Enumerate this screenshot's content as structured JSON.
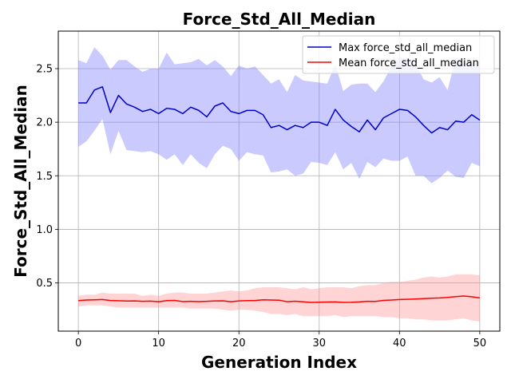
{
  "chart_data": {
    "type": "line",
    "title": "Force_Std_All_Median",
    "xlabel": "Generation Index",
    "ylabel": "Force_Std_All_Median",
    "xlim": [
      -2.5,
      52.5
    ],
    "ylim": [
      0.05,
      2.85
    ],
    "xticks": [
      0,
      10,
      20,
      30,
      40,
      50
    ],
    "yticks": [
      0.5,
      1.0,
      1.5,
      2.0,
      2.5
    ],
    "ytick_labels": [
      "0.5",
      "1.0",
      "1.5",
      "2.0",
      "2.5"
    ],
    "grid": true,
    "legend_position": "top-right",
    "x": [
      0,
      1,
      2,
      3,
      4,
      5,
      6,
      7,
      8,
      9,
      10,
      11,
      12,
      13,
      14,
      15,
      16,
      17,
      18,
      19,
      20,
      21,
      22,
      23,
      24,
      25,
      26,
      27,
      28,
      29,
      30,
      31,
      32,
      33,
      34,
      35,
      36,
      37,
      38,
      39,
      40,
      41,
      42,
      43,
      44,
      45,
      46,
      47,
      48,
      49,
      50
    ],
    "series": [
      {
        "name": "Max force_std_all_median",
        "color": "#0000cc",
        "band_color": "#8080ff",
        "values": [
          2.18,
          2.18,
          2.3,
          2.33,
          2.09,
          2.25,
          2.17,
          2.14,
          2.1,
          2.12,
          2.08,
          2.13,
          2.12,
          2.08,
          2.14,
          2.11,
          2.05,
          2.15,
          2.18,
          2.1,
          2.08,
          2.11,
          2.11,
          2.07,
          1.95,
          1.97,
          1.93,
          1.97,
          1.95,
          2.0,
          2.0,
          1.97,
          2.12,
          2.02,
          1.96,
          1.91,
          2.02,
          1.93,
          2.04,
          2.08,
          2.12,
          2.11,
          2.05,
          1.97,
          1.9,
          1.95,
          1.93,
          2.01,
          2.0,
          2.07,
          2.02
        ],
        "upper": [
          2.58,
          2.55,
          2.7,
          2.62,
          2.49,
          2.58,
          2.58,
          2.52,
          2.47,
          2.5,
          2.5,
          2.65,
          2.54,
          2.55,
          2.56,
          2.59,
          2.53,
          2.58,
          2.52,
          2.43,
          2.53,
          2.5,
          2.52,
          2.44,
          2.36,
          2.4,
          2.28,
          2.44,
          2.39,
          2.38,
          2.37,
          2.36,
          2.54,
          2.29,
          2.35,
          2.36,
          2.36,
          2.28,
          2.38,
          2.52,
          2.6,
          2.6,
          2.55,
          2.4,
          2.37,
          2.42,
          2.3,
          2.6,
          2.56,
          2.55,
          2.57
        ],
        "lower": [
          1.77,
          1.82,
          1.92,
          2.03,
          1.7,
          1.92,
          1.74,
          1.73,
          1.72,
          1.73,
          1.7,
          1.65,
          1.7,
          1.6,
          1.7,
          1.62,
          1.57,
          1.7,
          1.78,
          1.75,
          1.64,
          1.72,
          1.7,
          1.69,
          1.53,
          1.54,
          1.56,
          1.5,
          1.52,
          1.63,
          1.62,
          1.6,
          1.72,
          1.56,
          1.62,
          1.47,
          1.63,
          1.58,
          1.66,
          1.64,
          1.64,
          1.68,
          1.5,
          1.5,
          1.43,
          1.48,
          1.55,
          1.49,
          1.48,
          1.62,
          1.59
        ]
      },
      {
        "name": "Mean force_std_all_median",
        "color": "#ff0000",
        "band_color": "#ff9999",
        "values": [
          0.335,
          0.34,
          0.342,
          0.345,
          0.336,
          0.334,
          0.331,
          0.332,
          0.328,
          0.33,
          0.325,
          0.335,
          0.337,
          0.326,
          0.328,
          0.326,
          0.328,
          0.332,
          0.333,
          0.325,
          0.332,
          0.335,
          0.336,
          0.342,
          0.34,
          0.339,
          0.325,
          0.329,
          0.324,
          0.318,
          0.32,
          0.322,
          0.323,
          0.318,
          0.319,
          0.323,
          0.328,
          0.327,
          0.337,
          0.34,
          0.345,
          0.347,
          0.35,
          0.353,
          0.357,
          0.36,
          0.365,
          0.372,
          0.378,
          0.371,
          0.36
        ],
        "upper": [
          0.38,
          0.39,
          0.39,
          0.41,
          0.4,
          0.4,
          0.4,
          0.4,
          0.38,
          0.39,
          0.38,
          0.4,
          0.41,
          0.41,
          0.4,
          0.4,
          0.4,
          0.41,
          0.42,
          0.43,
          0.42,
          0.43,
          0.45,
          0.46,
          0.46,
          0.46,
          0.45,
          0.44,
          0.46,
          0.44,
          0.45,
          0.46,
          0.46,
          0.46,
          0.45,
          0.47,
          0.48,
          0.48,
          0.5,
          0.51,
          0.51,
          0.52,
          0.53,
          0.55,
          0.56,
          0.55,
          0.56,
          0.58,
          0.58,
          0.58,
          0.57
        ],
        "lower": [
          0.28,
          0.29,
          0.29,
          0.29,
          0.28,
          0.27,
          0.27,
          0.27,
          0.27,
          0.27,
          0.27,
          0.27,
          0.27,
          0.27,
          0.26,
          0.26,
          0.26,
          0.26,
          0.25,
          0.24,
          0.25,
          0.25,
          0.24,
          0.23,
          0.21,
          0.21,
          0.2,
          0.21,
          0.19,
          0.19,
          0.19,
          0.19,
          0.2,
          0.18,
          0.19,
          0.19,
          0.19,
          0.19,
          0.18,
          0.18,
          0.17,
          0.17,
          0.16,
          0.16,
          0.15,
          0.15,
          0.15,
          0.16,
          0.17,
          0.15,
          0.14
        ]
      }
    ]
  }
}
